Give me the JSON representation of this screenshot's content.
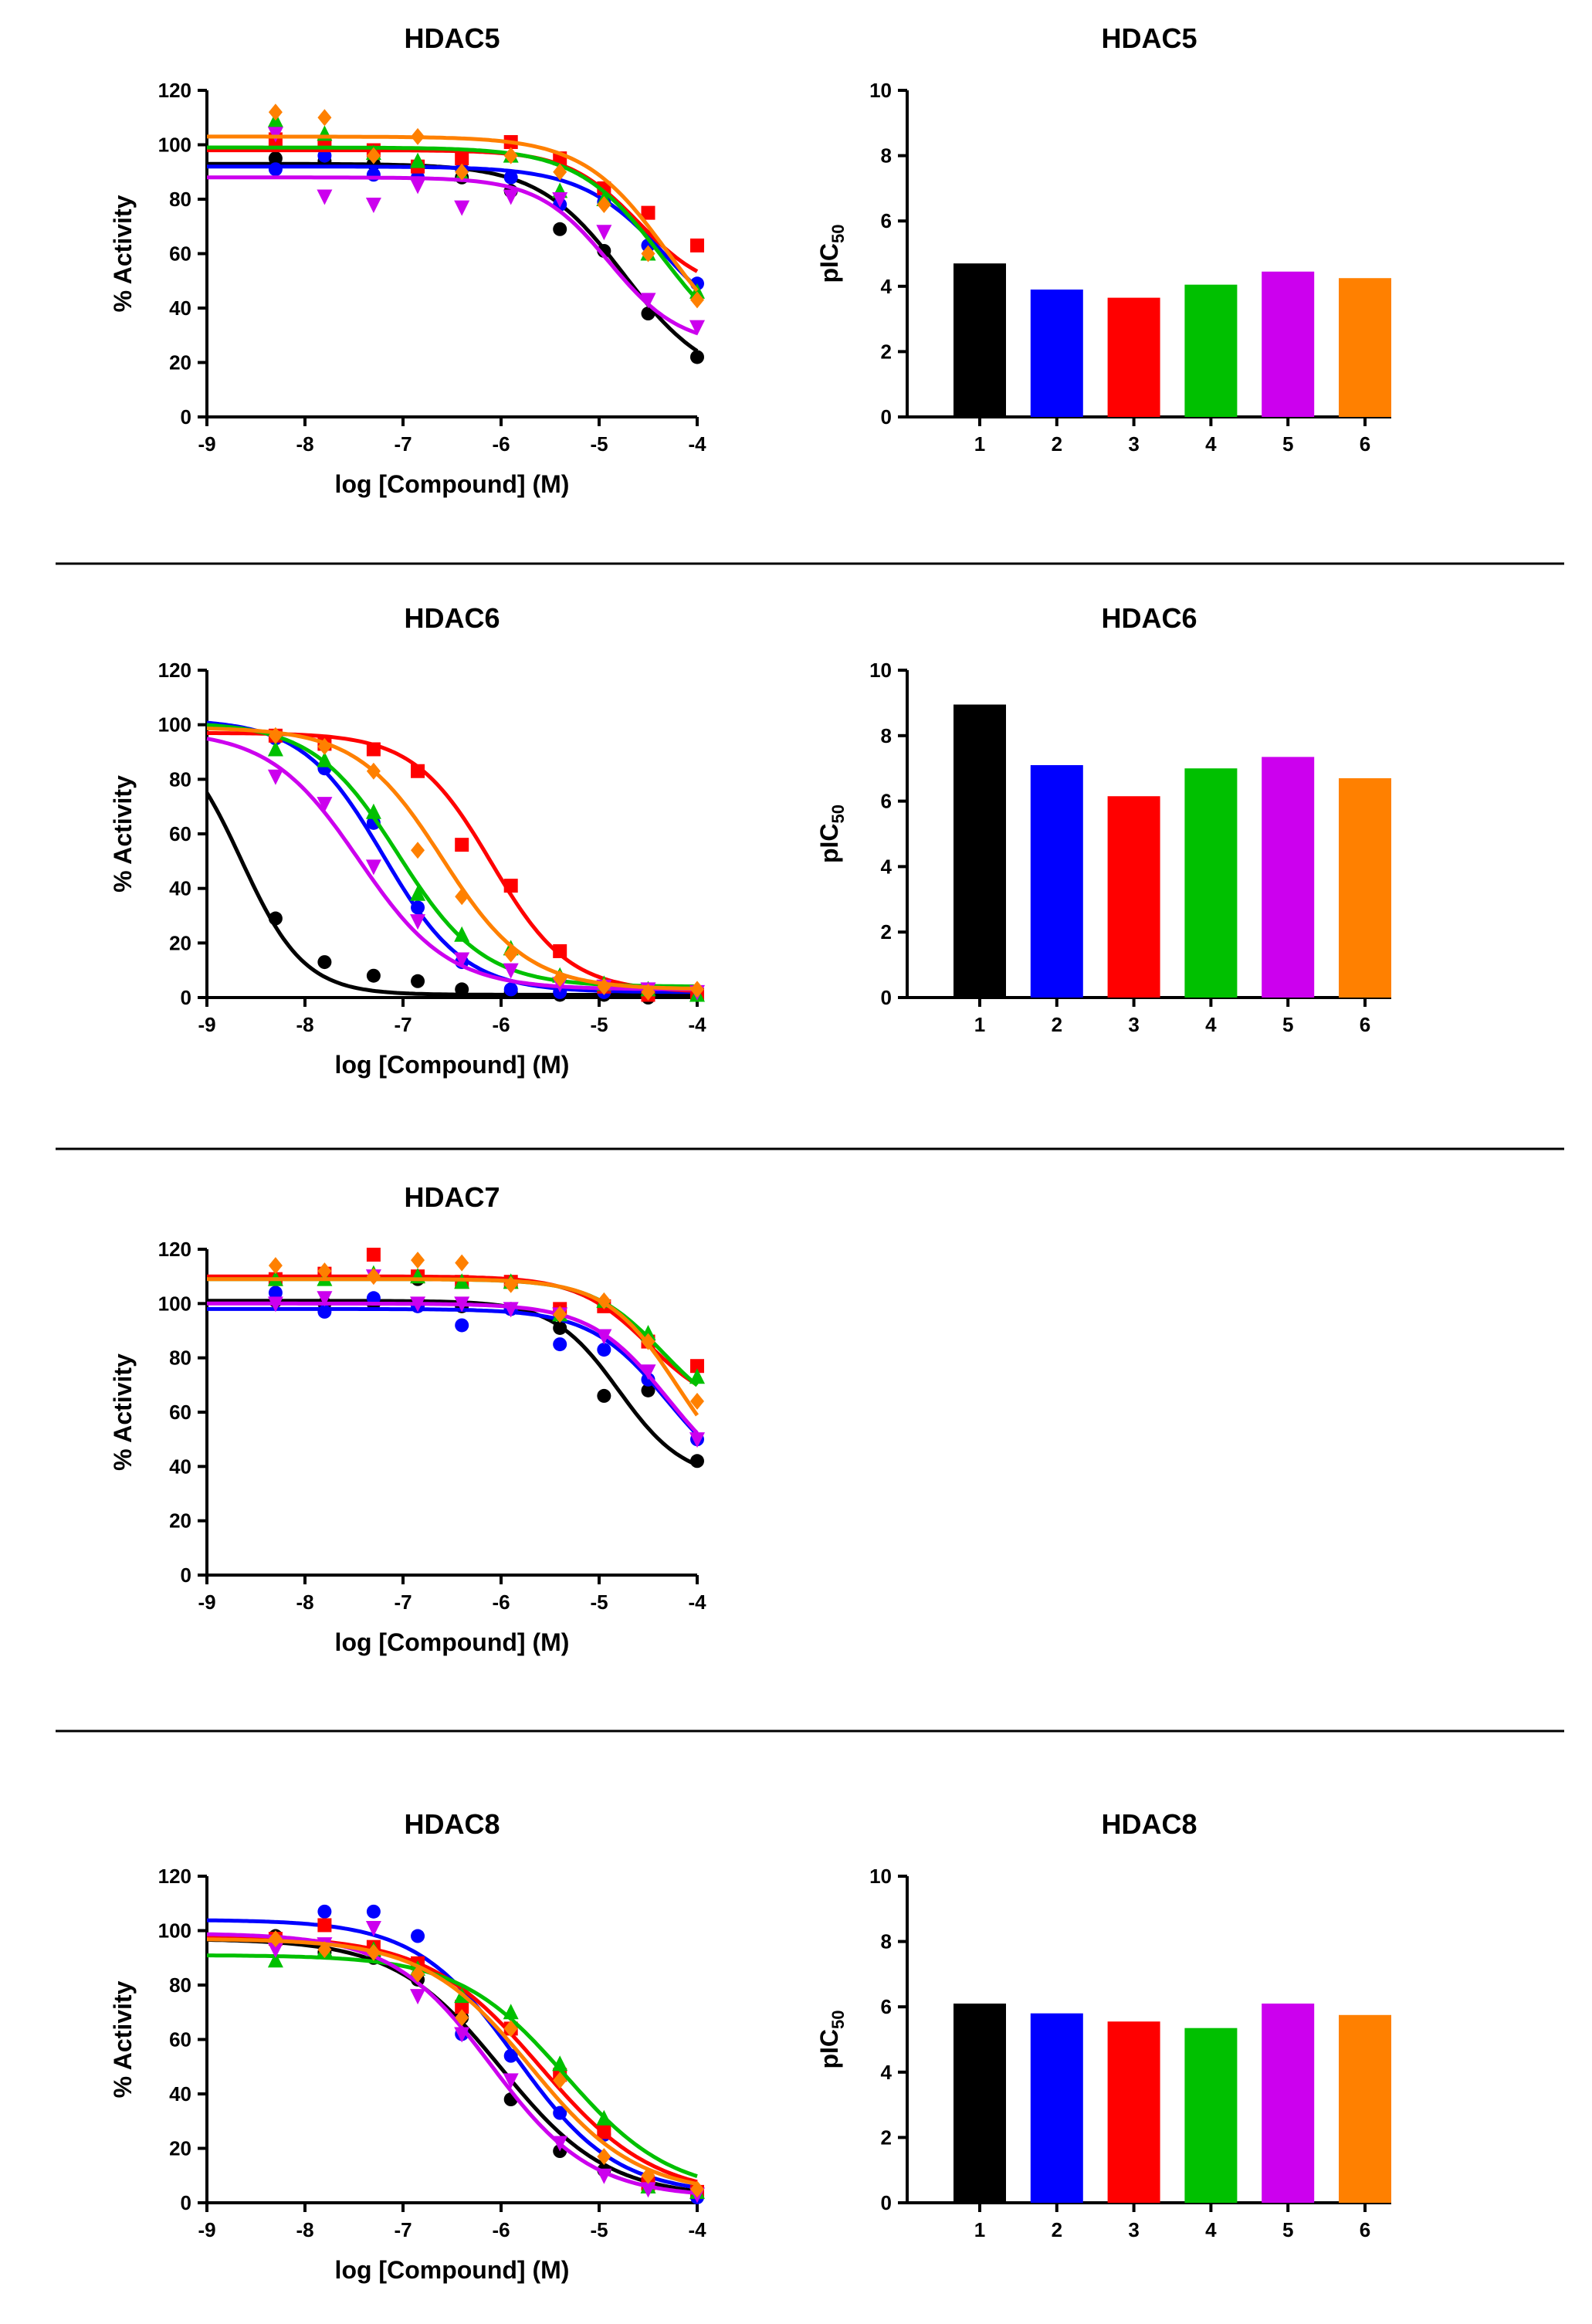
{
  "series_colors": [
    "#000000",
    "#0000ff",
    "#ff0000",
    "#00c000",
    "#cc00ee",
    "#ff8000"
  ],
  "compound_labels": [
    "1",
    "2",
    "3",
    "4",
    "5",
    "6"
  ],
  "chart_data": [
    {
      "id": "hdac5-curve",
      "type": "scatter",
      "title": "HDAC5",
      "xlabel": "log [Compound] (M)",
      "ylabel": "% Activity",
      "xlim": [
        -9,
        -4
      ],
      "ylim": [
        0,
        120
      ],
      "xticks": [
        -9,
        -8,
        -7,
        -6,
        -5,
        -4
      ],
      "yticks": [
        0,
        20,
        40,
        60,
        80,
        100,
        120
      ],
      "grid": false,
      "x": [
        -8.3,
        -7.8,
        -7.3,
        -6.85,
        -6.4,
        -5.9,
        -5.4,
        -4.95,
        -4.5,
        -4.0
      ],
      "series": [
        {
          "name": "1",
          "marker": "circle",
          "bottom": 12,
          "top": 93,
          "logIC50": -4.75,
          "hill": 1.0,
          "values": [
            95,
            94,
            93,
            92,
            88,
            83,
            69,
            61,
            38,
            22
          ]
        },
        {
          "name": "2",
          "marker": "circle",
          "bottom": 25,
          "top": 92,
          "logIC50": -4.3,
          "hill": 1.0,
          "values": [
            91,
            96,
            89,
            88,
            91,
            88,
            78,
            79,
            63,
            49
          ]
        },
        {
          "name": "3",
          "marker": "square",
          "bottom": 45,
          "top": 98,
          "logIC50": -4.6,
          "hill": 1.2,
          "values": [
            102,
            101,
            98,
            92,
            95,
            101,
            95,
            84,
            75,
            63
          ]
        },
        {
          "name": "4",
          "marker": "triangle-up",
          "bottom": 18,
          "top": 99,
          "logIC50": -4.35,
          "hill": 1.0,
          "values": [
            109,
            104,
            97,
            94,
            89,
            96,
            83,
            80,
            60,
            46
          ]
        },
        {
          "name": "5",
          "marker": "triangle-down",
          "bottom": 26,
          "top": 88,
          "logIC50": -4.9,
          "hill": 1.2,
          "values": [
            104,
            81,
            78,
            85,
            77,
            81,
            80,
            68,
            43,
            33
          ]
        },
        {
          "name": "6",
          "marker": "diamond",
          "bottom": 18,
          "top": 103,
          "logIC50": -4.3,
          "hill": 1.0,
          "values": [
            112,
            110,
            96,
            103,
            90,
            96,
            90,
            78,
            60,
            43
          ]
        }
      ]
    },
    {
      "id": "hdac6-curve",
      "type": "scatter",
      "title": "HDAC6",
      "xlabel": "log [Compound] (M)",
      "ylabel": "% Activity",
      "xlim": [
        -9,
        -4
      ],
      "ylim": [
        0,
        120
      ],
      "xticks": [
        -9,
        -8,
        -7,
        -6,
        -5,
        -4
      ],
      "yticks": [
        0,
        20,
        40,
        60,
        80,
        100,
        120
      ],
      "grid": false,
      "x": [
        -8.3,
        -7.8,
        -7.3,
        -6.85,
        -6.4,
        -5.9,
        -5.4,
        -4.95,
        -4.5,
        -4.0
      ],
      "series": [
        {
          "name": "1",
          "marker": "circle",
          "bottom": 1,
          "top": 100,
          "logIC50": -8.65,
          "hill": 1.35,
          "values": [
            29,
            13,
            8,
            6,
            3,
            2,
            1,
            1,
            0,
            1
          ]
        },
        {
          "name": "2",
          "marker": "circle",
          "bottom": 2,
          "top": 102,
          "logIC50": -7.2,
          "hill": 1.05,
          "values": [
            95,
            84,
            64,
            33,
            13,
            3,
            2,
            2,
            2,
            2
          ]
        },
        {
          "name": "3",
          "marker": "square",
          "bottom": 2,
          "top": 97,
          "logIC50": -6.1,
          "hill": 1.1,
          "values": [
            96,
            93,
            91,
            83,
            56,
            41,
            17,
            4,
            1,
            1
          ]
        },
        {
          "name": "4",
          "marker": "triangle-up",
          "bottom": 4,
          "top": 101,
          "logIC50": -7.05,
          "hill": 1.0,
          "values": [
            91,
            87,
            68,
            38,
            23,
            18,
            8,
            5,
            3,
            1
          ]
        },
        {
          "name": "5",
          "marker": "triangle-down",
          "bottom": 3,
          "top": 98,
          "logIC50": -7.45,
          "hill": 0.95,
          "values": [
            81,
            71,
            48,
            28,
            14,
            10,
            5,
            4,
            3,
            2
          ]
        },
        {
          "name": "6",
          "marker": "diamond",
          "bottom": 3,
          "top": 99,
          "logIC50": -6.6,
          "hill": 1.0,
          "values": [
            96,
            92,
            83,
            54,
            37,
            16,
            7,
            4,
            2,
            3
          ]
        }
      ]
    },
    {
      "id": "hdac7-curve",
      "type": "scatter",
      "title": "HDAC7",
      "xlabel": "log [Compound] (M)",
      "ylabel": "% Activity",
      "xlim": [
        -9,
        -4
      ],
      "ylim": [
        0,
        120
      ],
      "xticks": [
        -9,
        -8,
        -7,
        -6,
        -5,
        -4
      ],
      "yticks": [
        0,
        20,
        40,
        60,
        80,
        100,
        120
      ],
      "grid": false,
      "x": [
        -8.3,
        -7.8,
        -7.3,
        -6.85,
        -6.4,
        -5.9,
        -5.4,
        -4.95,
        -4.5,
        -4.0
      ],
      "series": [
        {
          "name": "1",
          "marker": "circle",
          "bottom": 35,
          "top": 101,
          "logIC50": -4.8,
          "hill": 1.3,
          "values": [
            101,
            100,
            100,
            109,
            99,
            98,
            91,
            66,
            68,
            42
          ]
        },
        {
          "name": "2",
          "marker": "circle",
          "bottom": 30,
          "top": 98,
          "logIC50": -4.3,
          "hill": 1.1,
          "values": [
            104,
            97,
            102,
            99,
            92,
            98,
            85,
            83,
            72,
            50
          ]
        },
        {
          "name": "3",
          "marker": "square",
          "bottom": 60,
          "top": 110,
          "logIC50": -4.5,
          "hill": 1.2,
          "values": [
            109,
            111,
            118,
            110,
            108,
            108,
            98,
            99,
            86,
            77
          ]
        },
        {
          "name": "4",
          "marker": "triangle-up",
          "bottom": 55,
          "top": 109,
          "logIC50": -4.35,
          "hill": 1.2,
          "values": [
            109,
            109,
            111,
            110,
            108,
            108,
            96,
            101,
            89,
            73
          ]
        },
        {
          "name": "5",
          "marker": "triangle-down",
          "bottom": 30,
          "top": 100,
          "logIC50": -4.3,
          "hill": 1.1,
          "values": [
            100,
            102,
            110,
            100,
            100,
            98,
            96,
            88,
            75,
            50
          ]
        },
        {
          "name": "6",
          "marker": "diamond",
          "bottom": 30,
          "top": 109,
          "logIC50": -4.2,
          "hill": 1.2,
          "values": [
            114,
            112,
            110,
            116,
            115,
            107,
            96,
            101,
            86,
            64
          ]
        }
      ]
    },
    {
      "id": "hdac8-curve",
      "type": "scatter",
      "title": "HDAC8",
      "xlabel": "log [Compound] (M)",
      "ylabel": "% Activity",
      "xlim": [
        -9,
        -4
      ],
      "ylim": [
        0,
        120
      ],
      "xticks": [
        -9,
        -8,
        -7,
        -6,
        -5,
        -4
      ],
      "yticks": [
        0,
        20,
        40,
        60,
        80,
        100,
        120
      ],
      "grid": false,
      "x": [
        -8.3,
        -7.8,
        -7.3,
        -6.85,
        -6.4,
        -5.9,
        -5.4,
        -4.95,
        -4.5,
        -4.0
      ],
      "series": [
        {
          "name": "1",
          "marker": "circle",
          "bottom": 2,
          "top": 97,
          "logIC50": -6.0,
          "hill": 0.8,
          "values": [
            98,
            92,
            90,
            82,
            68,
            38,
            19,
            12,
            7,
            3
          ]
        },
        {
          "name": "2",
          "marker": "circle",
          "bottom": 3,
          "top": 104,
          "logIC50": -5.85,
          "hill": 0.85,
          "values": [
            96,
            107,
            107,
            98,
            62,
            54,
            33,
            25,
            8,
            2
          ]
        },
        {
          "name": "3",
          "marker": "square",
          "bottom": 2,
          "top": 98,
          "logIC50": -5.6,
          "hill": 0.75,
          "values": [
            97,
            102,
            94,
            88,
            72,
            64,
            47,
            26,
            7,
            4
          ]
        },
        {
          "name": "4",
          "marker": "triangle-up",
          "bottom": 3,
          "top": 91,
          "logIC50": -5.35,
          "hill": 0.8,
          "values": [
            89,
            93,
            93,
            86,
            76,
            70,
            51,
            31,
            6,
            4
          ]
        },
        {
          "name": "5",
          "marker": "triangle-down",
          "bottom": 2,
          "top": 99,
          "logIC50": -6.1,
          "hill": 0.85,
          "values": [
            93,
            95,
            101,
            76,
            62,
            45,
            22,
            10,
            5,
            3
          ]
        },
        {
          "name": "6",
          "marker": "diamond",
          "bottom": 3,
          "top": 97,
          "logIC50": -5.7,
          "hill": 0.8,
          "values": [
            97,
            93,
            92,
            84,
            68,
            64,
            45,
            17,
            10,
            5
          ]
        }
      ]
    },
    {
      "id": "hdac5-bar",
      "type": "bar",
      "title": "HDAC5",
      "xlabel": "",
      "ylabel": "pIC50",
      "ylim": [
        0,
        10
      ],
      "yticks": [
        0,
        2,
        4,
        6,
        8,
        10
      ],
      "grid": false,
      "categories": [
        "1",
        "2",
        "3",
        "4",
        "5",
        "6"
      ],
      "values": [
        4.7,
        3.9,
        3.65,
        4.05,
        4.45,
        4.25
      ]
    },
    {
      "id": "hdac6-bar",
      "type": "bar",
      "title": "HDAC6",
      "xlabel": "",
      "ylabel": "pIC50",
      "ylim": [
        0,
        10
      ],
      "yticks": [
        0,
        2,
        4,
        6,
        8,
        10
      ],
      "grid": false,
      "categories": [
        "1",
        "2",
        "3",
        "4",
        "5",
        "6"
      ],
      "values": [
        8.95,
        7.1,
        6.15,
        7.0,
        7.35,
        6.7
      ]
    },
    {
      "id": "hdac8-bar",
      "type": "bar",
      "title": "HDAC8",
      "xlabel": "",
      "ylabel": "pIC50",
      "ylim": [
        0,
        10
      ],
      "yticks": [
        0,
        2,
        4,
        6,
        8,
        10
      ],
      "grid": false,
      "categories": [
        "1",
        "2",
        "3",
        "4",
        "5",
        "6"
      ],
      "values": [
        6.1,
        5.8,
        5.55,
        5.35,
        6.1,
        5.75
      ]
    }
  ]
}
